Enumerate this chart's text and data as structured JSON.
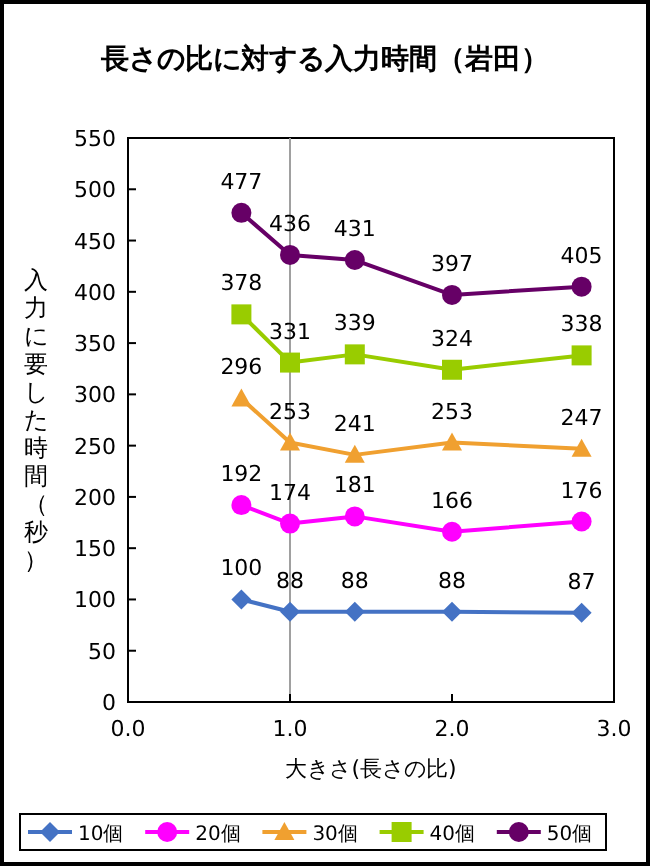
{
  "chart_data": {
    "type": "line",
    "title": "長さの比に対する入力時間（岩田）",
    "xlabel": "大きさ(長さの比)",
    "ylabel": "入力に要した時間（秒）",
    "x": [
      0.7,
      1.0,
      1.4,
      2.0,
      2.8
    ],
    "xlim": [
      0,
      3
    ],
    "xticks": [
      {
        "value": 0,
        "label": "0.0"
      },
      {
        "value": 1,
        "label": "1.0"
      },
      {
        "value": 2,
        "label": "2.0"
      },
      {
        "value": 3,
        "label": "3.0"
      }
    ],
    "ylim": [
      0,
      550
    ],
    "yticks": [
      0,
      50,
      100,
      150,
      200,
      250,
      300,
      350,
      400,
      450,
      500,
      550
    ],
    "ref_lines": [
      {
        "axis": "x",
        "value": 1.0,
        "color": "#a0a0a0"
      }
    ],
    "series": [
      {
        "name": "10個",
        "color": "#4472c4",
        "marker": "diamond",
        "values": [
          100,
          88,
          88,
          88,
          87
        ]
      },
      {
        "name": "20個",
        "color": "#ff00ff",
        "marker": "circle",
        "values": [
          192,
          174,
          181,
          166,
          176
        ]
      },
      {
        "name": "30個",
        "color": "#f0a030",
        "marker": "triangle",
        "values": [
          296,
          253,
          241,
          253,
          247
        ]
      },
      {
        "name": "40個",
        "color": "#99cc00",
        "marker": "square",
        "values": [
          378,
          331,
          339,
          324,
          338
        ]
      },
      {
        "name": "50個",
        "color": "#660066",
        "marker": "circle",
        "values": [
          477,
          436,
          431,
          397,
          405
        ]
      }
    ],
    "data_labels": true,
    "legend": "bottom",
    "grid": false,
    "line_style": "solid"
  }
}
